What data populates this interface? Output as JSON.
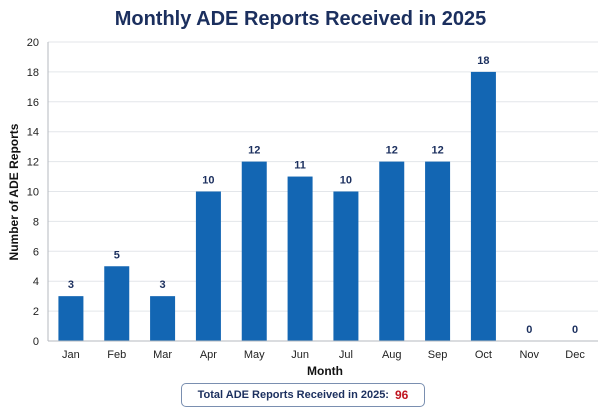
{
  "chart_data": {
    "type": "bar",
    "title": "Monthly ADE Reports Received in 2025",
    "xlabel": "Month",
    "ylabel": "Number of ADE Reports",
    "categories": [
      "Jan",
      "Feb",
      "Mar",
      "Apr",
      "May",
      "Jun",
      "Jul",
      "Aug",
      "Sep",
      "Oct",
      "Nov",
      "Dec"
    ],
    "values": [
      3,
      5,
      3,
      10,
      12,
      11,
      10,
      12,
      12,
      18,
      0,
      0
    ],
    "ylim": [
      0,
      20
    ],
    "yticks": [
      0,
      2,
      4,
      6,
      8,
      10,
      12,
      14,
      16,
      18,
      20
    ],
    "grid": "horizontal",
    "bar_color": "#1366b3",
    "data_label_color": "#1b2f5e",
    "show_data_labels": true
  },
  "summary": {
    "label": "Total ADE Reports Received in 2025:",
    "value": "96",
    "value_color": "#c0141e"
  }
}
